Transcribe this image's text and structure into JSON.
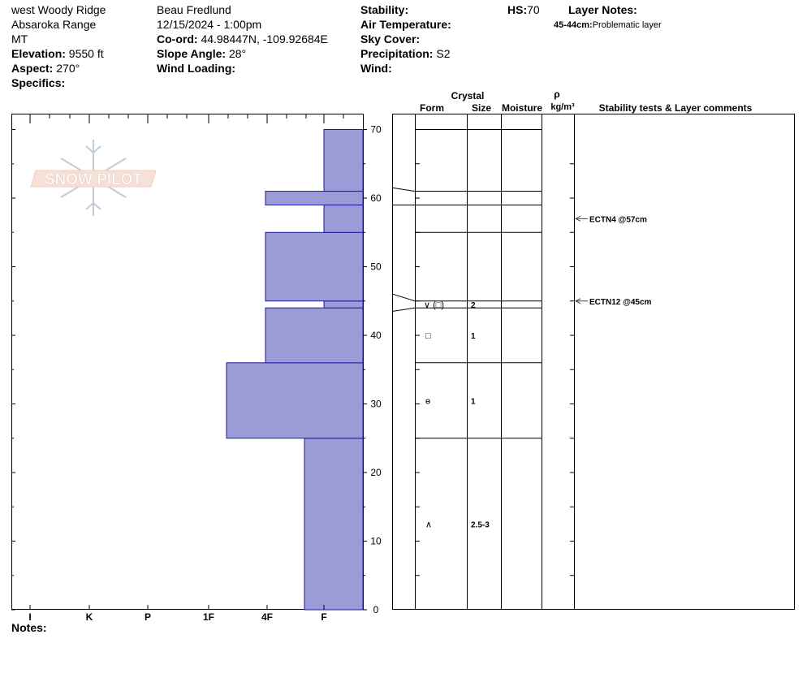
{
  "header": {
    "location": "west Woody Ridge",
    "range": "Absaroka Range",
    "state": "MT",
    "elevation_label": "Elevation:",
    "elevation": "9550 ft",
    "aspect_label": "Aspect:",
    "aspect": "270°",
    "specifics_label": "Specifics:",
    "observer": "Beau  Fredlund",
    "datetime": "12/15/2024 - 1:00pm",
    "coord_label": "Co-ord:",
    "coord": "44.98447N, -109.92684E",
    "slope_label": "Slope Angle:",
    "slope": "28°",
    "wind_loading_label": "Wind Loading:",
    "stability_label": "Stability:",
    "air_temp_label": "Air Temperature:",
    "sky_cover_label": "Sky Cover:",
    "precip_label": "Precipitation:",
    "precip": "S2",
    "wind_label": "Wind:",
    "hs_label": "HS:",
    "hs": "70",
    "layer_notes_label": "Layer Notes:",
    "layer_note_range": "45-44cm:",
    "layer_note_text": "Problematic layer"
  },
  "notes_label": "Notes:",
  "logo_text": "SNOW PILOT",
  "columns": {
    "crystal": "Crystal",
    "form": "Form",
    "size": "Size",
    "moisture": "Moisture",
    "rho": "ρ",
    "density_unit": "kg/m³",
    "stability": "Stability tests & Layer comments"
  },
  "colors": {
    "hardness_fill": "#9b9bd7",
    "hardness_stroke": "#1a1aa0"
  },
  "chart_data": {
    "type": "bar",
    "orientation": "horizontal",
    "ylim": [
      0,
      70
    ],
    "y_ticks": [
      "0",
      "10",
      "20",
      "30",
      "40",
      "50",
      "60",
      "70"
    ],
    "hardness_scale": [
      "I",
      "K",
      "P",
      "1F",
      "4F",
      "F"
    ],
    "hardness_profile": [
      {
        "bottom": 0,
        "top": 25,
        "hardness": "4F-"
      },
      {
        "bottom": 25,
        "top": 36,
        "hardness": "1F+"
      },
      {
        "bottom": 36,
        "top": 44,
        "hardness": "4F"
      },
      {
        "bottom": 44,
        "top": 45,
        "hardness": "F"
      },
      {
        "bottom": 45,
        "top": 55,
        "hardness": "4F"
      },
      {
        "bottom": 55,
        "top": 59,
        "hardness": "F"
      },
      {
        "bottom": 59,
        "top": 61,
        "hardness": "4F"
      },
      {
        "bottom": 61,
        "top": 70,
        "hardness": "F"
      }
    ],
    "layer_boundaries": [
      70,
      61,
      59,
      55,
      45,
      44,
      36,
      25
    ],
    "grains": [
      {
        "depth": 44.5,
        "form": "∨ (□)",
        "size": "2"
      },
      {
        "depth": 40,
        "form": "□",
        "size": "1"
      },
      {
        "depth": 30.5,
        "form": "ɵ",
        "size": "1"
      },
      {
        "depth": 12.5,
        "form": "∧",
        "size": "2.5-3"
      }
    ],
    "stability_tests": [
      {
        "depth": 57,
        "label": "ECTN4 @57cm"
      },
      {
        "depth": 45,
        "label": "ECTN12 @45cm"
      }
    ]
  }
}
